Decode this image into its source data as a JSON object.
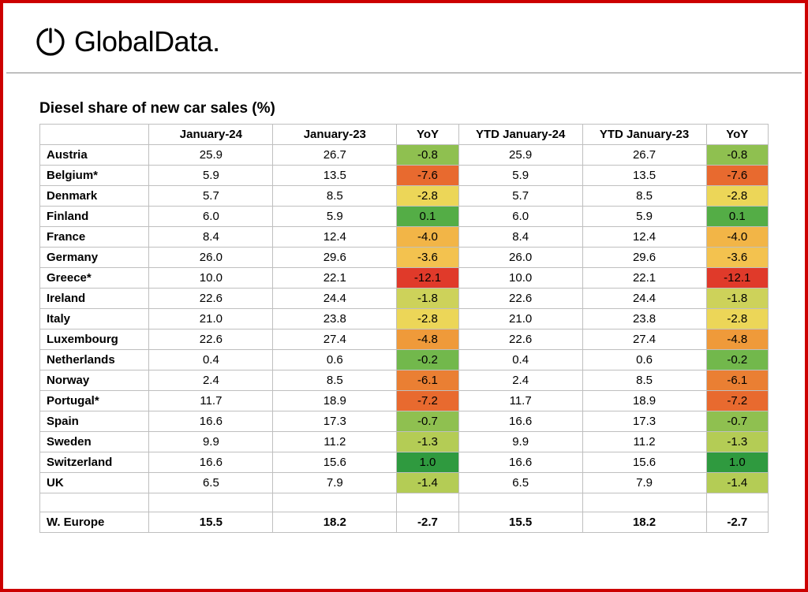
{
  "brand": "GlobalData.",
  "logo_color": "#000000",
  "title": "Diesel share of new car sales (%)",
  "border_color": "#cc0000",
  "cell_border_color": "#bfbfbf",
  "text_color": "#000000",
  "header_fontsize": 15,
  "body_fontsize": 15,
  "title_fontsize": 19,
  "columns": [
    "",
    "January-24",
    "January-23",
    "YoY",
    "YTD January-24",
    "YTD January-23",
    "YoY"
  ],
  "column_widths_pct": [
    15,
    17,
    17,
    8.5,
    17,
    17,
    8.5
  ],
  "yoy_color_scale": {
    "type": "diverging",
    "stops": [
      {
        "value": -12.1,
        "color": "#e03a2a"
      },
      {
        "value": -7.6,
        "color": "#e86a2f"
      },
      {
        "value": -7.2,
        "color": "#e86a2f"
      },
      {
        "value": -6.1,
        "color": "#ea7f33"
      },
      {
        "value": -4.8,
        "color": "#ef9a3a"
      },
      {
        "value": -4.0,
        "color": "#f2b547"
      },
      {
        "value": -3.6,
        "color": "#f3c24f"
      },
      {
        "value": -2.8,
        "color": "#ecd658"
      },
      {
        "value": -1.8,
        "color": "#cdd25a"
      },
      {
        "value": -1.4,
        "color": "#b4cc55"
      },
      {
        "value": -1.3,
        "color": "#b4cc55"
      },
      {
        "value": -0.8,
        "color": "#8fc050"
      },
      {
        "value": -0.7,
        "color": "#8fc050"
      },
      {
        "value": -0.2,
        "color": "#72b84c"
      },
      {
        "value": 0.1,
        "color": "#54ad46"
      },
      {
        "value": 1.0,
        "color": "#2f9a3f"
      }
    ]
  },
  "rows": [
    {
      "country": "Austria",
      "jan24": "25.9",
      "jan23": "26.7",
      "yoy1": "-0.8",
      "ytd24": "25.9",
      "ytd23": "26.7",
      "yoy2": "-0.8",
      "c1": "#8fc050",
      "c2": "#8fc050"
    },
    {
      "country": "Belgium*",
      "jan24": "5.9",
      "jan23": "13.5",
      "yoy1": "-7.6",
      "ytd24": "5.9",
      "ytd23": "13.5",
      "yoy2": "-7.6",
      "c1": "#e86a2f",
      "c2": "#e86a2f"
    },
    {
      "country": "Denmark",
      "jan24": "5.7",
      "jan23": "8.5",
      "yoy1": "-2.8",
      "ytd24": "5.7",
      "ytd23": "8.5",
      "yoy2": "-2.8",
      "c1": "#ecd658",
      "c2": "#ecd658"
    },
    {
      "country": "Finland",
      "jan24": "6.0",
      "jan23": "5.9",
      "yoy1": "0.1",
      "ytd24": "6.0",
      "ytd23": "5.9",
      "yoy2": "0.1",
      "c1": "#54ad46",
      "c2": "#54ad46"
    },
    {
      "country": "France",
      "jan24": "8.4",
      "jan23": "12.4",
      "yoy1": "-4.0",
      "ytd24": "8.4",
      "ytd23": "12.4",
      "yoy2": "-4.0",
      "c1": "#f2b547",
      "c2": "#f2b547"
    },
    {
      "country": "Germany",
      "jan24": "26.0",
      "jan23": "29.6",
      "yoy1": "-3.6",
      "ytd24": "26.0",
      "ytd23": "29.6",
      "yoy2": "-3.6",
      "c1": "#f3c24f",
      "c2": "#f3c24f"
    },
    {
      "country": "Greece*",
      "jan24": "10.0",
      "jan23": "22.1",
      "yoy1": "-12.1",
      "ytd24": "10.0",
      "ytd23": "22.1",
      "yoy2": "-12.1",
      "c1": "#e03a2a",
      "c2": "#e03a2a"
    },
    {
      "country": "Ireland",
      "jan24": "22.6",
      "jan23": "24.4",
      "yoy1": "-1.8",
      "ytd24": "22.6",
      "ytd23": "24.4",
      "yoy2": "-1.8",
      "c1": "#cdd25a",
      "c2": "#cdd25a"
    },
    {
      "country": "Italy",
      "jan24": "21.0",
      "jan23": "23.8",
      "yoy1": "-2.8",
      "ytd24": "21.0",
      "ytd23": "23.8",
      "yoy2": "-2.8",
      "c1": "#ecd658",
      "c2": "#ecd658"
    },
    {
      "country": "Luxembourg",
      "jan24": "22.6",
      "jan23": "27.4",
      "yoy1": "-4.8",
      "ytd24": "22.6",
      "ytd23": "27.4",
      "yoy2": "-4.8",
      "c1": "#ef9a3a",
      "c2": "#ef9a3a"
    },
    {
      "country": "Netherlands",
      "jan24": "0.4",
      "jan23": "0.6",
      "yoy1": "-0.2",
      "ytd24": "0.4",
      "ytd23": "0.6",
      "yoy2": "-0.2",
      "c1": "#72b84c",
      "c2": "#72b84c"
    },
    {
      "country": "Norway",
      "jan24": "2.4",
      "jan23": "8.5",
      "yoy1": "-6.1",
      "ytd24": "2.4",
      "ytd23": "8.5",
      "yoy2": "-6.1",
      "c1": "#ea7f33",
      "c2": "#ea7f33"
    },
    {
      "country": "Portugal*",
      "jan24": "11.7",
      "jan23": "18.9",
      "yoy1": "-7.2",
      "ytd24": "11.7",
      "ytd23": "18.9",
      "yoy2": "-7.2",
      "c1": "#e86a2f",
      "c2": "#e86a2f"
    },
    {
      "country": "Spain",
      "jan24": "16.6",
      "jan23": "17.3",
      "yoy1": "-0.7",
      "ytd24": "16.6",
      "ytd23": "17.3",
      "yoy2": "-0.7",
      "c1": "#8fc050",
      "c2": "#8fc050"
    },
    {
      "country": "Sweden",
      "jan24": "9.9",
      "jan23": "11.2",
      "yoy1": "-1.3",
      "ytd24": "9.9",
      "ytd23": "11.2",
      "yoy2": "-1.3",
      "c1": "#b4cc55",
      "c2": "#b4cc55"
    },
    {
      "country": "Switzerland",
      "jan24": "16.6",
      "jan23": "15.6",
      "yoy1": "1.0",
      "ytd24": "16.6",
      "ytd23": "15.6",
      "yoy2": "1.0",
      "c1": "#2f9a3f",
      "c2": "#2f9a3f"
    },
    {
      "country": "UK",
      "jan24": "6.5",
      "jan23": "7.9",
      "yoy1": "-1.4",
      "ytd24": "6.5",
      "ytd23": "7.9",
      "yoy2": "-1.4",
      "c1": "#b4cc55",
      "c2": "#b4cc55"
    }
  ],
  "total": {
    "country": "W. Europe",
    "jan24": "15.5",
    "jan23": "18.2",
    "yoy1": "-2.7",
    "ytd24": "15.5",
    "ytd23": "18.2",
    "yoy2": "-2.7"
  }
}
